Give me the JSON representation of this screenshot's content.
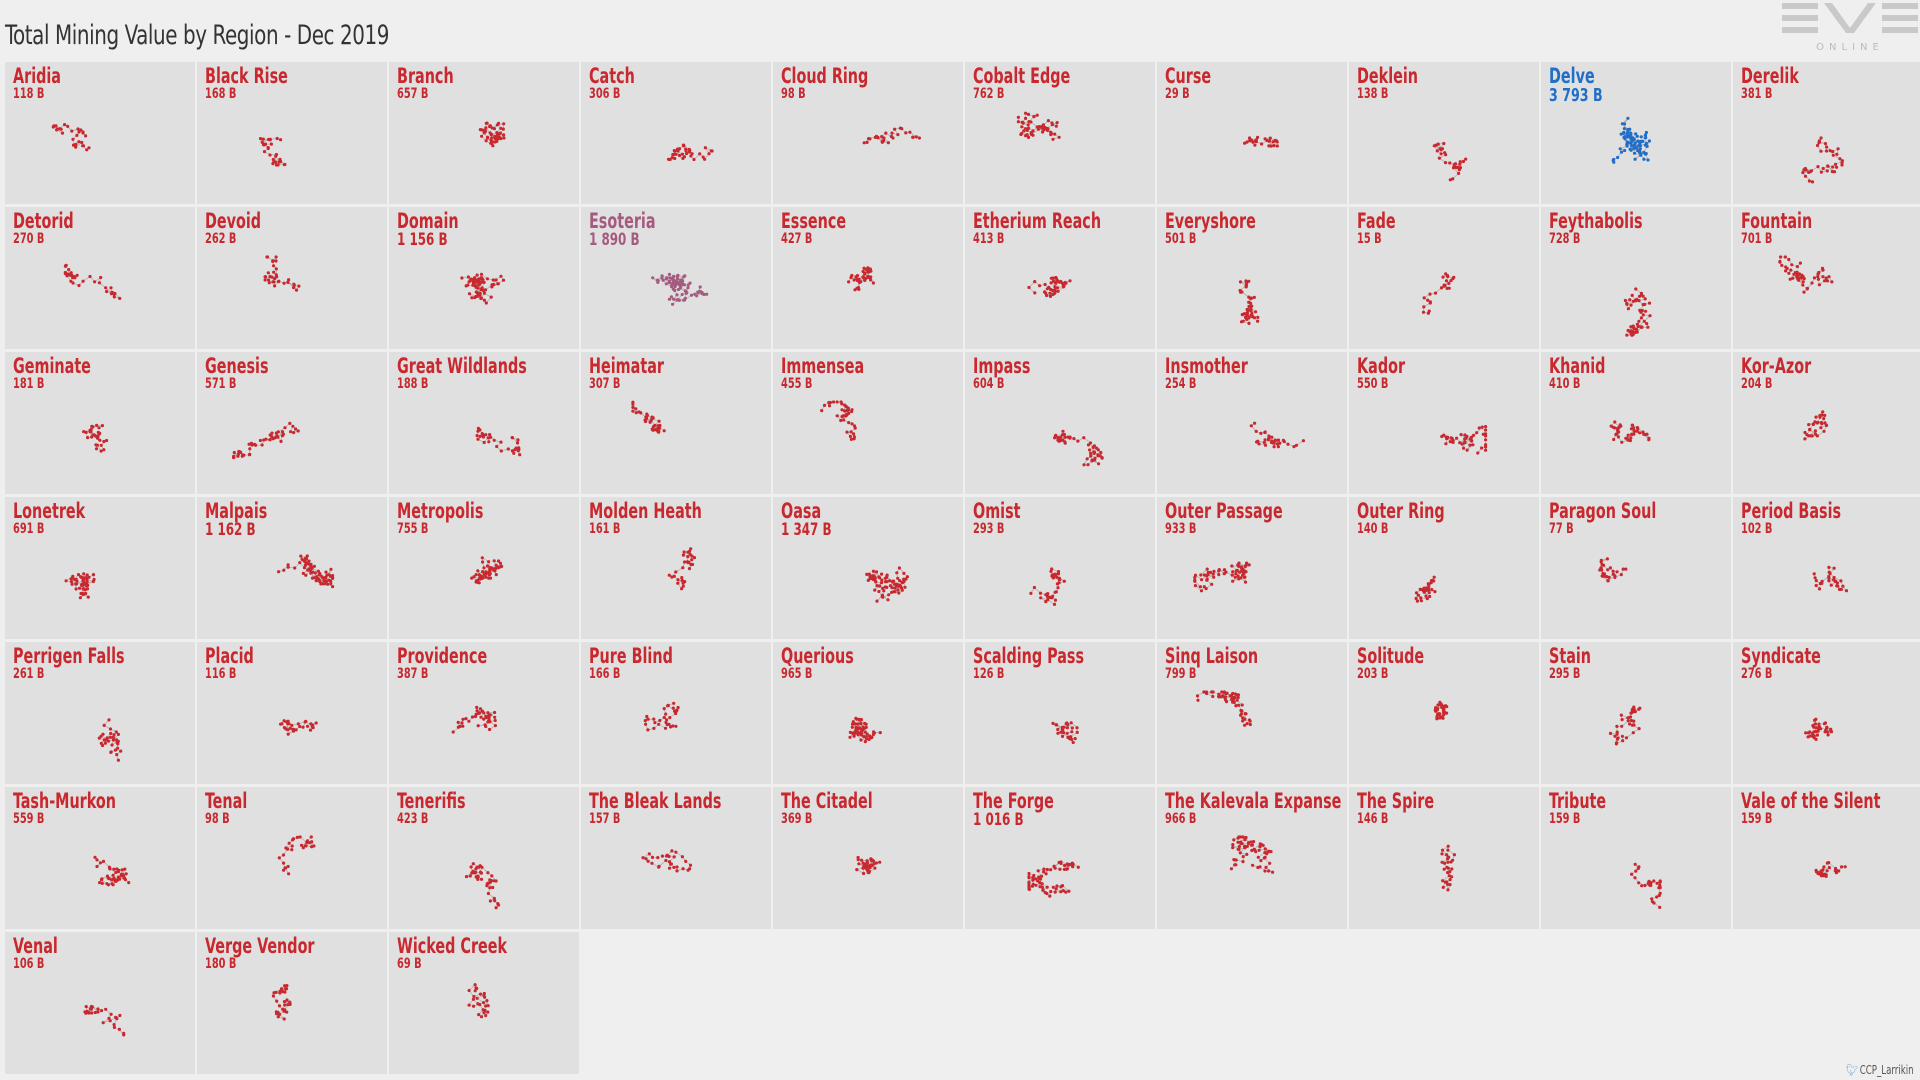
{
  "title": "Total Mining Value by Region - Dec 2019",
  "logo": {
    "text": "EVE",
    "subtext": "ONLINE"
  },
  "credit": {
    "icon": "twitter-bird-icon",
    "handle": "CCP_Larrikin"
  },
  "colors": {
    "default": "#c8282e",
    "highlight": "#1f6fc9",
    "low": "#a55b7f",
    "background": "#efefef",
    "cell": "#e0e0e0"
  },
  "chart_data": {
    "type": "small-multiples",
    "title": "Total Mining Value by Region - Dec 2019",
    "unit": "B",
    "regions": [
      {
        "name": "Aridia",
        "value": "118 B",
        "num": 118
      },
      {
        "name": "Black Rise",
        "value": "168 B",
        "num": 168
      },
      {
        "name": "Branch",
        "value": "657 B",
        "num": 657
      },
      {
        "name": "Catch",
        "value": "306 B",
        "num": 306
      },
      {
        "name": "Cloud Ring",
        "value": "98 B",
        "num": 98
      },
      {
        "name": "Cobalt Edge",
        "value": "762 B",
        "num": 762
      },
      {
        "name": "Curse",
        "value": "29 B",
        "num": 29
      },
      {
        "name": "Deklein",
        "value": "138 B",
        "num": 138
      },
      {
        "name": "Delve",
        "value": "3 793 B",
        "num": 3793
      },
      {
        "name": "Derelik",
        "value": "381 B",
        "num": 381
      },
      {
        "name": "Detorid",
        "value": "270 B",
        "num": 270
      },
      {
        "name": "Devoid",
        "value": "262 B",
        "num": 262
      },
      {
        "name": "Domain",
        "value": "1 156 B",
        "num": 1156
      },
      {
        "name": "Esoteria",
        "value": "1 890 B",
        "num": 1890
      },
      {
        "name": "Essence",
        "value": "427 B",
        "num": 427
      },
      {
        "name": "Etherium Reach",
        "value": "413 B",
        "num": 413
      },
      {
        "name": "Everyshore",
        "value": "501 B",
        "num": 501
      },
      {
        "name": "Fade",
        "value": "15 B",
        "num": 15
      },
      {
        "name": "Feythabolis",
        "value": "728 B",
        "num": 728
      },
      {
        "name": "Fountain",
        "value": "701 B",
        "num": 701
      },
      {
        "name": "Geminate",
        "value": "181 B",
        "num": 181
      },
      {
        "name": "Genesis",
        "value": "571 B",
        "num": 571
      },
      {
        "name": "Great Wildlands",
        "value": "188 B",
        "num": 188
      },
      {
        "name": "Heimatar",
        "value": "307 B",
        "num": 307
      },
      {
        "name": "Immensea",
        "value": "455 B",
        "num": 455
      },
      {
        "name": "Impass",
        "value": "604 B",
        "num": 604
      },
      {
        "name": "Insmother",
        "value": "254 B",
        "num": 254
      },
      {
        "name": "Kador",
        "value": "550 B",
        "num": 550
      },
      {
        "name": "Khanid",
        "value": "410 B",
        "num": 410
      },
      {
        "name": "Kor-Azor",
        "value": "204 B",
        "num": 204
      },
      {
        "name": "Lonetrek",
        "value": "691 B",
        "num": 691
      },
      {
        "name": "Malpais",
        "value": "1 162 B",
        "num": 1162
      },
      {
        "name": "Metropolis",
        "value": "755 B",
        "num": 755
      },
      {
        "name": "Molden Heath",
        "value": "161 B",
        "num": 161
      },
      {
        "name": "Oasa",
        "value": "1 347 B",
        "num": 1347
      },
      {
        "name": "Omist",
        "value": "293 B",
        "num": 293
      },
      {
        "name": "Outer Passage",
        "value": "933 B",
        "num": 933
      },
      {
        "name": "Outer Ring",
        "value": "140 B",
        "num": 140
      },
      {
        "name": "Paragon Soul",
        "value": "77 B",
        "num": 77
      },
      {
        "name": "Period Basis",
        "value": "102 B",
        "num": 102
      },
      {
        "name": "Perrigen Falls",
        "value": "261 B",
        "num": 261
      },
      {
        "name": "Placid",
        "value": "116 B",
        "num": 116
      },
      {
        "name": "Providence",
        "value": "387 B",
        "num": 387
      },
      {
        "name": "Pure Blind",
        "value": "166 B",
        "num": 166
      },
      {
        "name": "Querious",
        "value": "965 B",
        "num": 965
      },
      {
        "name": "Scalding Pass",
        "value": "126 B",
        "num": 126
      },
      {
        "name": "Sinq Laison",
        "value": "799 B",
        "num": 799
      },
      {
        "name": "Solitude",
        "value": "203 B",
        "num": 203
      },
      {
        "name": "Stain",
        "value": "295 B",
        "num": 295
      },
      {
        "name": "Syndicate",
        "value": "276 B",
        "num": 276
      },
      {
        "name": "Tash-Murkon",
        "value": "559 B",
        "num": 559
      },
      {
        "name": "Tenal",
        "value": "98 B",
        "num": 98
      },
      {
        "name": "Tenerifis",
        "value": "423 B",
        "num": 423
      },
      {
        "name": "The Bleak Lands",
        "value": "157 B",
        "num": 157
      },
      {
        "name": "The Citadel",
        "value": "369 B",
        "num": 369
      },
      {
        "name": "The Forge",
        "value": "1 016 B",
        "num": 1016
      },
      {
        "name": "The Kalevala Expanse",
        "value": "966 B",
        "num": 966
      },
      {
        "name": "The Spire",
        "value": "146 B",
        "num": 146
      },
      {
        "name": "Tribute",
        "value": "159 B",
        "num": 159
      },
      {
        "name": "Vale of the Silent",
        "value": "159 B",
        "num": 159
      },
      {
        "name": "Venal",
        "value": "106 B",
        "num": 106
      },
      {
        "name": "Verge Vendor",
        "value": "180 B",
        "num": 180
      },
      {
        "name": "Wicked Creek",
        "value": "69 B",
        "num": 69
      }
    ]
  }
}
